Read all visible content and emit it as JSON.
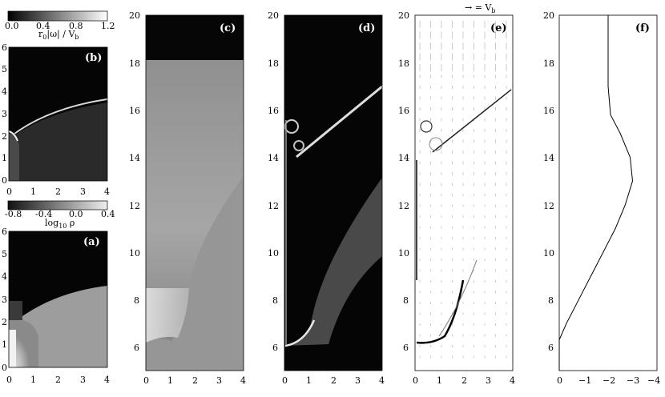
{
  "panels": {
    "a": {
      "label": "(a)",
      "xticks": [
        "0",
        "1",
        "2",
        "3",
        "4"
      ],
      "yticks": [
        "0",
        "1",
        "2",
        "3",
        "4",
        "5",
        "6"
      ]
    },
    "b": {
      "label": "(b)",
      "xticks": [
        "0",
        "1",
        "2",
        "3",
        "4"
      ],
      "yticks": [
        "0",
        "1",
        "2",
        "3",
        "4",
        "5",
        "6"
      ]
    },
    "c": {
      "label": "(c)",
      "xticks": [
        "0",
        "1",
        "2",
        "3",
        "4"
      ],
      "yticks": [
        "6",
        "8",
        "10",
        "12",
        "14",
        "16",
        "18",
        "20"
      ]
    },
    "d": {
      "label": "(d)",
      "xticks": [
        "0",
        "1",
        "2",
        "3",
        "4"
      ],
      "yticks": [
        "6",
        "8",
        "10",
        "12",
        "14",
        "16",
        "18",
        "20"
      ]
    },
    "e": {
      "label": "(e)",
      "xticks": [
        "0",
        "1",
        "2",
        "3",
        "4"
      ],
      "yticks": [
        "6",
        "8",
        "10",
        "12",
        "14",
        "16",
        "18",
        "20"
      ],
      "vector_key": "→ = V",
      "vector_key_sub": "b"
    },
    "f": {
      "label": "(f)",
      "xticks": [
        "0",
        "−1",
        "−2",
        "−3",
        "−4"
      ],
      "yticks": [
        "6",
        "8",
        "10",
        "12",
        "14",
        "16",
        "18",
        "20"
      ]
    }
  },
  "colorbars": {
    "vorticity": {
      "ticks": [
        "0.0",
        "0.4",
        "0.8",
        "1.2"
      ],
      "label_main": "r",
      "label_sub": "0",
      "label_rest": "|ω| / V",
      "label_rest_sub": "b"
    },
    "density": {
      "ticks": [
        "-0.8",
        "-0.4",
        "0.0",
        "0.4"
      ],
      "label_main": "log",
      "label_sub": "10",
      "label_rest": " ρ"
    }
  },
  "chart_data": [
    {
      "panel": "a",
      "type": "heatmap",
      "quantity": "log10 rho",
      "xlim": [
        0,
        4
      ],
      "ylim": [
        0,
        6
      ]
    },
    {
      "panel": "b",
      "type": "heatmap",
      "quantity": "r0|omega|/Vb",
      "xlim": [
        0,
        4
      ],
      "ylim": [
        0,
        6
      ]
    },
    {
      "panel": "c",
      "type": "heatmap",
      "xlim": [
        0,
        4
      ],
      "ylim": [
        5,
        20
      ]
    },
    {
      "panel": "d",
      "type": "heatmap",
      "xlim": [
        0,
        4
      ],
      "ylim": [
        5,
        20
      ]
    },
    {
      "panel": "e",
      "type": "scatter",
      "xlim": [
        0,
        4
      ],
      "ylim": [
        5,
        20
      ]
    },
    {
      "panel": "f",
      "type": "line",
      "xlim": [
        0,
        -4
      ],
      "ylim": [
        5,
        20
      ],
      "x": [
        0,
        0,
        -0.3,
        -0.8,
        -1.3,
        -1.8,
        -2.3,
        -2.7,
        -3.0,
        -2.9,
        -2.5,
        -2.1,
        -2.0,
        -2.0
      ],
      "y": [
        5.0,
        6.3,
        7.0,
        8.0,
        9.0,
        10.0,
        11.0,
        12.0,
        13.0,
        14.0,
        15.0,
        15.8,
        17.0,
        20.0
      ]
    }
  ]
}
